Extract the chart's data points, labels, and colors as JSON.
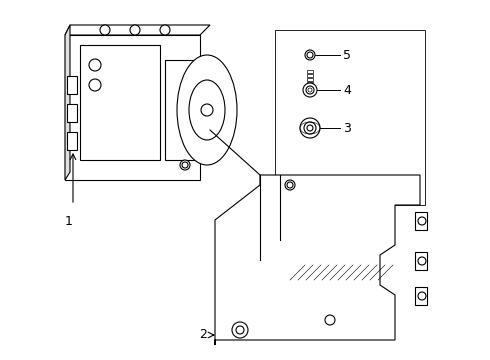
{
  "bg_color": "#ffffff",
  "line_color": "#000000",
  "label_color": "#000000",
  "part_numbers": [
    "1",
    "2",
    "3",
    "4",
    "5"
  ],
  "figsize": [
    4.9,
    3.6
  ],
  "dpi": 100,
  "light_gray": "#d0d0d0",
  "box_fill": "#e8e8e8"
}
